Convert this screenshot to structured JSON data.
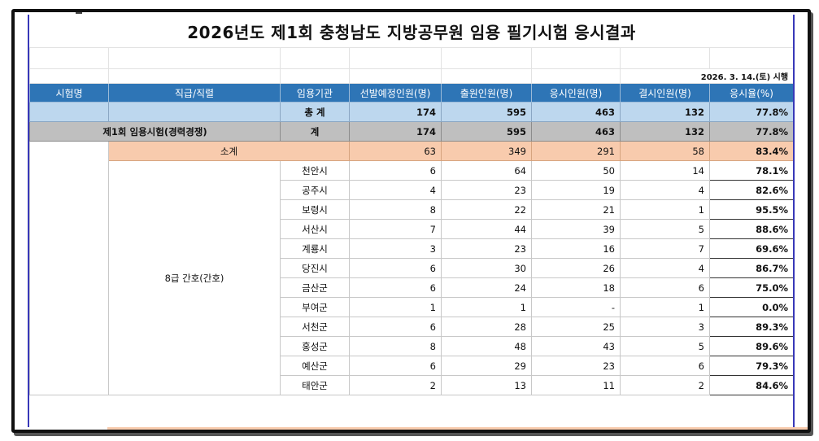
{
  "title": "2026년도 제1회 충청남도 지방공무원 임용 필기시험 응시결과",
  "exam_date": "2026. 3. 14.(토) 시행",
  "headers": [
    "시험명",
    "직급/직렬",
    "임용기관",
    "선발예정인원(명)",
    "출원인원(명)",
    "응시인원(명)",
    "결시인원(명)",
    "응시율(%)"
  ],
  "total": {
    "label": "총 계",
    "planned": "174",
    "applied": "595",
    "taken": "463",
    "absent": "132",
    "rate": "77.8%"
  },
  "exam": {
    "name": "제1회 임용시험(경력경쟁)",
    "label": "계",
    "planned": "174",
    "applied": "595",
    "taken": "463",
    "absent": "132",
    "rate": "77.8%"
  },
  "subtotal": {
    "label": "소계",
    "planned": "63",
    "applied": "349",
    "taken": "291",
    "absent": "58",
    "rate": "83.4%"
  },
  "position": "8급 간호(간호)",
  "rows": [
    {
      "agency": "천안시",
      "planned": "6",
      "applied": "64",
      "taken": "50",
      "absent": "14",
      "rate": "78.1%"
    },
    {
      "agency": "공주시",
      "planned": "4",
      "applied": "23",
      "taken": "19",
      "absent": "4",
      "rate": "82.6%"
    },
    {
      "agency": "보령시",
      "planned": "8",
      "applied": "22",
      "taken": "21",
      "absent": "1",
      "rate": "95.5%"
    },
    {
      "agency": "서산시",
      "planned": "7",
      "applied": "44",
      "taken": "39",
      "absent": "5",
      "rate": "88.6%"
    },
    {
      "agency": "계룡시",
      "planned": "3",
      "applied": "23",
      "taken": "16",
      "absent": "7",
      "rate": "69.6%"
    },
    {
      "agency": "당진시",
      "planned": "6",
      "applied": "30",
      "taken": "26",
      "absent": "4",
      "rate": "86.7%"
    },
    {
      "agency": "금산군",
      "planned": "6",
      "applied": "24",
      "taken": "18",
      "absent": "6",
      "rate": "75.0%"
    },
    {
      "agency": "부여군",
      "planned": "1",
      "applied": "1",
      "taken": "-",
      "absent": "1",
      "rate": "0.0%"
    },
    {
      "agency": "서천군",
      "planned": "6",
      "applied": "28",
      "taken": "25",
      "absent": "3",
      "rate": "89.3%"
    },
    {
      "agency": "홍성군",
      "planned": "8",
      "applied": "48",
      "taken": "43",
      "absent": "5",
      "rate": "89.6%"
    },
    {
      "agency": "예산군",
      "planned": "6",
      "applied": "29",
      "taken": "23",
      "absent": "6",
      "rate": "79.3%"
    },
    {
      "agency": "태안군",
      "planned": "2",
      "applied": "13",
      "taken": "11",
      "absent": "2",
      "rate": "84.6%"
    }
  ],
  "colors": {
    "header_bg": "#2e75b6",
    "total_bg": "#bdd7ee",
    "exam_bg": "#bfbfbf",
    "subtotal_bg": "#f8cbad",
    "frame_border": "#3838b8"
  }
}
